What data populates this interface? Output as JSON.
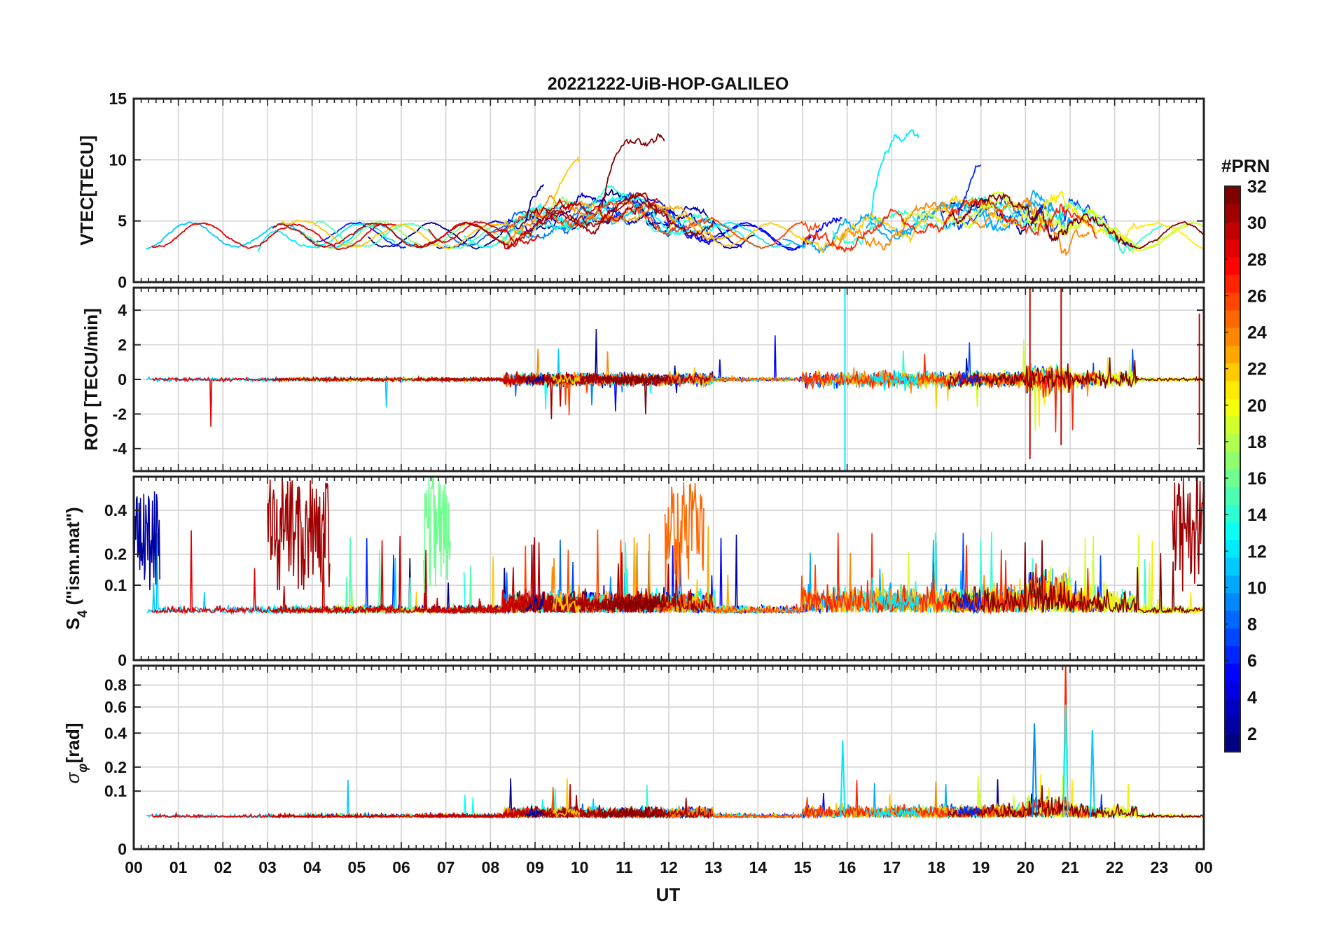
{
  "figure": {
    "title": "20221222-UiB-HOP-GALILEO",
    "xlabel": "UT",
    "x_ticks": [
      "00",
      "01",
      "02",
      "03",
      "04",
      "05",
      "06",
      "07",
      "08",
      "09",
      "10",
      "11",
      "12",
      "13",
      "14",
      "15",
      "16",
      "17",
      "18",
      "19",
      "20",
      "21",
      "22",
      "23",
      "00"
    ]
  },
  "colorbar": {
    "label": "#PRN",
    "colormap": "jet",
    "range": [
      1,
      32
    ],
    "ticks": [
      "2",
      "4",
      "6",
      "8",
      "10",
      "12",
      "14",
      "16",
      "18",
      "20",
      "22",
      "24",
      "26",
      "28",
      "30",
      "32"
    ]
  },
  "chart_data": [
    {
      "type": "line",
      "panel": "VTEC",
      "ylabel": "VTEC[TECU]",
      "ylim": [
        0,
        15
      ],
      "y_ticks": [
        "0",
        "5",
        "10",
        "15"
      ],
      "grid": true,
      "x_range_hours": [
        0,
        24
      ],
      "series_prn": [
        1,
        2,
        3,
        5,
        6,
        7,
        8,
        9,
        10,
        11,
        12,
        13,
        14,
        15,
        17,
        19,
        21,
        22,
        23,
        24,
        26,
        27,
        29,
        30,
        31,
        32
      ],
      "highlights": [
        {
          "prn": 32,
          "x": [
            10.5,
            11.9
          ],
          "approx_peak": 12.5
        },
        {
          "prn": 12,
          "x": [
            16.5,
            17.6
          ],
          "approx_peak": 13.3
        },
        {
          "prn": 6,
          "x": [
            18.5,
            19.0
          ],
          "approx_peak": 11.0
        },
        {
          "prn": 22,
          "x": [
            9.4,
            10.0
          ],
          "approx_peak": 10.3
        },
        {
          "prn": 2,
          "x": [
            8.8,
            9.2
          ],
          "approx_peak": 9.3
        }
      ]
    },
    {
      "type": "line",
      "panel": "ROT",
      "ylabel": "ROT [TECU/min]",
      "ylim": [
        -5.3,
        5.3
      ],
      "y_ticks": [
        "-4",
        "-2",
        "0",
        "2",
        "4"
      ],
      "grid": true,
      "x_range_hours": [
        0,
        24
      ],
      "highlights": [
        {
          "x": 15.95,
          "range": [
            -5.3,
            5.3
          ]
        },
        {
          "x": 20.1,
          "range": [
            -4.6,
            5.3
          ]
        },
        {
          "x": 20.8,
          "range": [
            -3.8,
            5.3
          ]
        },
        {
          "x": 23.9,
          "range": [
            -3.8,
            3.8
          ]
        }
      ]
    },
    {
      "type": "line",
      "panel": "S4",
      "ylabel": "S4 (\"ism.mat\")",
      "ylim": [
        0,
        0.6
      ],
      "y_scale": "sqrt",
      "y_ticks": [
        "0",
        "0.1",
        "0.2",
        "0.4"
      ],
      "grid": true,
      "x_range_hours": [
        0,
        24
      ],
      "highlights": [
        {
          "prn": 31,
          "x": [
            3.0,
            4.4
          ],
          "approx_peak": 0.6
        },
        {
          "prn": 16,
          "x": [
            6.5,
            7.1
          ],
          "approx_peak": 0.6
        },
        {
          "prn": 25,
          "x": [
            11.9,
            12.8
          ],
          "approx_peak": 0.6
        },
        {
          "prn": 31,
          "x": [
            23.3,
            24.0
          ],
          "approx_peak": 0.6
        },
        {
          "prn": 2,
          "x": [
            0.0,
            0.6
          ],
          "approx_peak": 0.52
        }
      ]
    },
    {
      "type": "line",
      "panel": "sigma_phi",
      "ylabel": "σφ[rad]",
      "ylim": [
        0,
        1.0
      ],
      "y_ticks": [
        "0",
        "0.1",
        "0.2",
        "0.4",
        "0.6",
        "0.8"
      ],
      "grid": true,
      "x_range_hours": [
        0,
        24
      ],
      "highlights": [
        {
          "prn": 27,
          "x": 20.9,
          "approx_peak": 1.0
        },
        {
          "prn": 13,
          "x": 20.9,
          "approx_peak": 0.62
        },
        {
          "prn": 9,
          "x": 20.2,
          "approx_peak": 0.47
        },
        {
          "prn": 11,
          "x": 21.5,
          "approx_peak": 0.42
        },
        {
          "prn": 12,
          "x": 15.9,
          "approx_peak": 0.35
        }
      ]
    }
  ]
}
